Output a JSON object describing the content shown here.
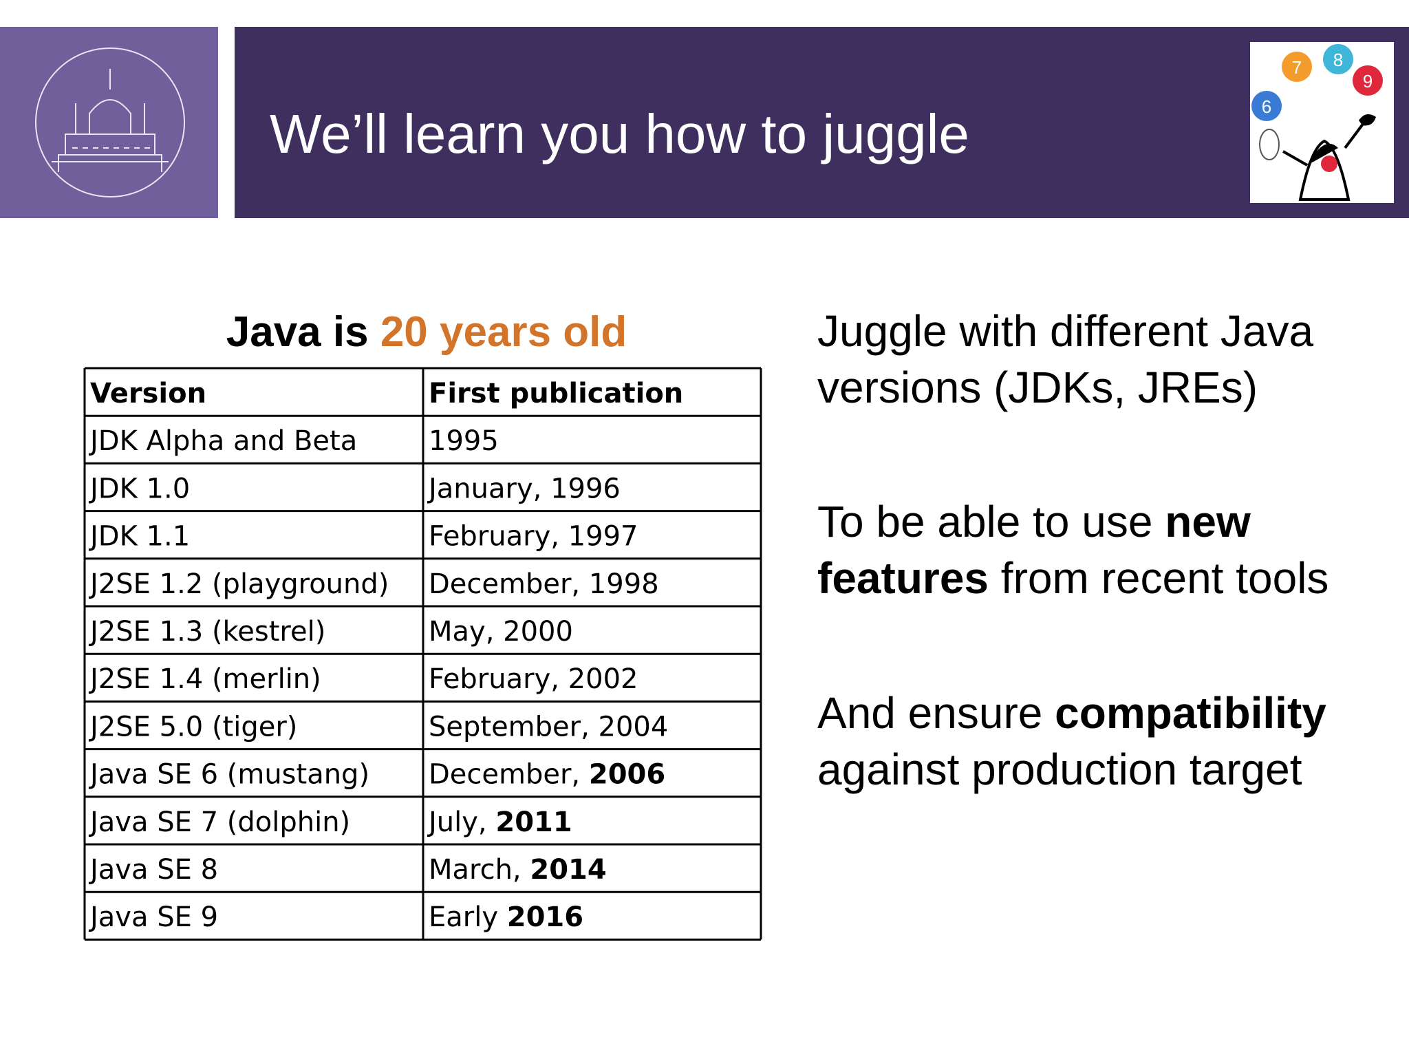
{
  "header": {
    "title": "We’ll learn you how to juggle"
  },
  "table": {
    "caption": [
      {
        "text": "Java is "
      },
      {
        "text": "20 years old",
        "highlight": true
      }
    ],
    "columns": [
      "Version",
      "First publication"
    ],
    "rows": [
      {
        "version": "JDK Alpha  and Beta",
        "publication": [
          "1995"
        ]
      },
      {
        "version": "JDK 1.0",
        "publication": [
          "January, 1996"
        ]
      },
      {
        "version": "JDK 1.1",
        "publication": [
          "February, 1997"
        ]
      },
      {
        "version": "J2SE 1.2 (playground)",
        "publication": [
          "December, 1998"
        ]
      },
      {
        "version": "J2SE 1.3 (kestrel)",
        "publication": [
          "May, 2000"
        ]
      },
      {
        "version": "J2SE 1.4 (merlin)",
        "publication": [
          "February, 2002"
        ]
      },
      {
        "version": "J2SE 5.0 (tiger)",
        "publication": [
          "September, 2004"
        ]
      },
      {
        "version": "Java SE 6 (mustang)",
        "publication": [
          "December, ",
          "2006"
        ]
      },
      {
        "version": "Java SE 7 (dolphin)",
        "publication": [
          "July, ",
          "2011"
        ]
      },
      {
        "version": "Java SE 8",
        "publication": [
          "March, ",
          "2014"
        ]
      },
      {
        "version": "Java SE 9",
        "publication": [
          "Early ",
          "2016"
        ]
      }
    ]
  },
  "bullets": [
    {
      "lines": [
        [
          {
            "text": "Juggle with different Java"
          }
        ],
        [
          {
            "text": "versions (JDKs, JREs)"
          }
        ]
      ]
    },
    {
      "lines": [
        [
          {
            "text": "To be able to use "
          },
          {
            "text": "new",
            "bold": true
          }
        ],
        [
          {
            "text": "features",
            "bold": true
          },
          {
            "text": " from recent tools"
          }
        ]
      ]
    },
    {
      "lines": [
        [
          {
            "text": "And ensure "
          },
          {
            "text": "compatibility",
            "bold": true
          }
        ],
        [
          {
            "text": "against production target"
          }
        ]
      ]
    }
  ],
  "logo": {
    "balls": [
      "6",
      "7",
      "8",
      "9"
    ]
  }
}
